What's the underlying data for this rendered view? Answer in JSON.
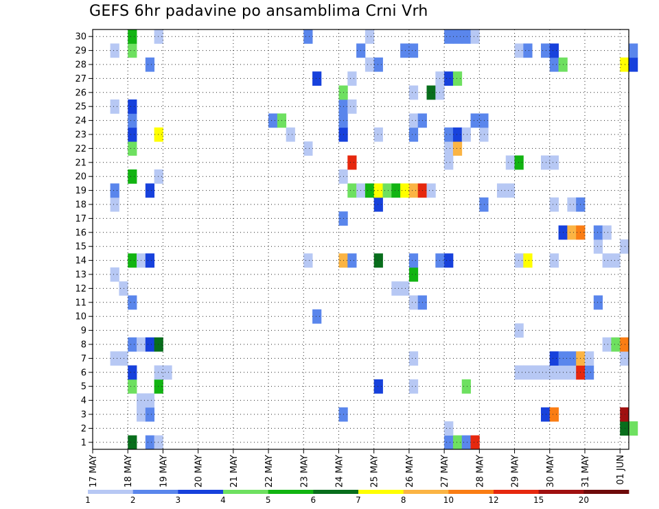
{
  "chart_data": {
    "type": "heatmap",
    "title": "GEFS 6hr padavine po ansamblima Crni Vrh",
    "y_ticks": [
      1,
      2,
      3,
      4,
      5,
      6,
      7,
      8,
      9,
      10,
      11,
      12,
      13,
      14,
      15,
      16,
      17,
      18,
      19,
      20,
      21,
      22,
      23,
      24,
      25,
      26,
      27,
      28,
      29,
      30
    ],
    "x_ticks": [
      "17 MAY",
      "18 MAY",
      "19 MAY",
      "20 MAY",
      "21 MAY",
      "22 MAY",
      "23 MAY",
      "24 MAY",
      "25 MAY",
      "26 MAY",
      "27 MAY",
      "28 MAY",
      "29 MAY",
      "30 MAY",
      "31 MAY",
      "01 JUN"
    ],
    "x_range": [
      "17 MAY 00Z",
      "01 JUN 06Z"
    ],
    "time_step_hours": 6,
    "grid": true,
    "colorbar": {
      "labels": [
        "1",
        "2",
        "3",
        "4",
        "5",
        "6",
        "7",
        "8",
        "10",
        "12",
        "15",
        "20"
      ],
      "colors": [
        "#b7c8f4",
        "#5a86ec",
        "#1741dc",
        "#6ee060",
        "#12b412",
        "#086e1c",
        "#ffff00",
        "#fbb444",
        "#fa7d14",
        "#e6280e",
        "#a01010",
        "#6e0a0a"
      ]
    },
    "cells": [
      {
        "m": 0,
        "t": "18 MAY 00Z",
        "c": 5
      },
      {
        "m": 0,
        "t": "18 MAY 12Z",
        "c": 1
      },
      {
        "m": 0,
        "t": "18 MAY 18Z",
        "c": 0
      },
      {
        "m": 0,
        "t": "27 MAY 00Z",
        "c": 1
      },
      {
        "m": 0,
        "t": "27 MAY 06Z",
        "c": 3
      },
      {
        "m": 0,
        "t": "27 MAY 12Z",
        "c": 1
      },
      {
        "m": 0,
        "t": "27 MAY 18Z",
        "c": 9
      },
      {
        "m": 1,
        "t": "27 MAY 00Z",
        "c": 0
      },
      {
        "m": 1,
        "t": "01 JUN 00Z",
        "c": 5
      },
      {
        "m": 1,
        "t": "01 JUN 06Z",
        "c": 3
      },
      {
        "m": 2,
        "t": "18 MAY 06Z",
        "c": 0
      },
      {
        "m": 2,
        "t": "18 MAY 12Z",
        "c": 1
      },
      {
        "m": 2,
        "t": "24 MAY 00Z",
        "c": 1
      },
      {
        "m": 2,
        "t": "29 MAY 18Z",
        "c": 2
      },
      {
        "m": 2,
        "t": "30 MAY 00Z",
        "c": 8
      },
      {
        "m": 2,
        "t": "01 JUN 00Z",
        "c": 10
      },
      {
        "m": 3,
        "t": "18 MAY 06Z",
        "c": 0
      },
      {
        "m": 3,
        "t": "18 MAY 12Z",
        "c": 0
      },
      {
        "m": 4,
        "t": "18 MAY 00Z",
        "c": 3
      },
      {
        "m": 4,
        "t": "18 MAY 18Z",
        "c": 4
      },
      {
        "m": 4,
        "t": "25 MAY 00Z",
        "c": 2
      },
      {
        "m": 4,
        "t": "26 MAY 00Z",
        "c": 0
      },
      {
        "m": 4,
        "t": "27 MAY 12Z",
        "c": 3
      },
      {
        "m": 5,
        "t": "18 MAY 00Z",
        "c": 2
      },
      {
        "m": 5,
        "t": "18 MAY 18Z",
        "c": 0
      },
      {
        "m": 5,
        "t": "19 MAY 00Z",
        "c": 0
      },
      {
        "m": 5,
        "t": "29 MAY 00Z",
        "c": 0
      },
      {
        "m": 5,
        "t": "29 MAY 06Z",
        "c": 0
      },
      {
        "m": 5,
        "t": "29 MAY 12Z",
        "c": 0
      },
      {
        "m": 5,
        "t": "29 MAY 18Z",
        "c": 0
      },
      {
        "m": 5,
        "t": "30 MAY 00Z",
        "c": 0
      },
      {
        "m": 5,
        "t": "30 MAY 06Z",
        "c": 0
      },
      {
        "m": 5,
        "t": "30 MAY 12Z",
        "c": 0
      },
      {
        "m": 5,
        "t": "30 MAY 18Z",
        "c": 9
      },
      {
        "m": 5,
        "t": "31 MAY 00Z",
        "c": 1
      },
      {
        "m": 6,
        "t": "17 MAY 12Z",
        "c": 0
      },
      {
        "m": 6,
        "t": "17 MAY 18Z",
        "c": 0
      },
      {
        "m": 6,
        "t": "26 MAY 00Z",
        "c": 0
      },
      {
        "m": 6,
        "t": "30 MAY 00Z",
        "c": 2
      },
      {
        "m": 6,
        "t": "30 MAY 06Z",
        "c": 1
      },
      {
        "m": 6,
        "t": "30 MAY 12Z",
        "c": 1
      },
      {
        "m": 6,
        "t": "30 MAY 18Z",
        "c": 7
      },
      {
        "m": 6,
        "t": "31 MAY 00Z",
        "c": 0
      },
      {
        "m": 6,
        "t": "01 JUN 00Z",
        "c": 0
      },
      {
        "m": 7,
        "t": "18 MAY 00Z",
        "c": 1
      },
      {
        "m": 7,
        "t": "18 MAY 06Z",
        "c": 0
      },
      {
        "m": 7,
        "t": "18 MAY 12Z",
        "c": 2
      },
      {
        "m": 7,
        "t": "18 MAY 18Z",
        "c": 5
      },
      {
        "m": 7,
        "t": "31 MAY 12Z",
        "c": 0
      },
      {
        "m": 7,
        "t": "31 MAY 18Z",
        "c": 3
      },
      {
        "m": 7,
        "t": "01 JUN 00Z",
        "c": 8
      },
      {
        "m": 8,
        "t": "29 MAY 00Z",
        "c": 0
      },
      {
        "m": 9,
        "t": "23 MAY 06Z",
        "c": 1
      },
      {
        "m": 10,
        "t": "18 MAY 00Z",
        "c": 1
      },
      {
        "m": 10,
        "t": "26 MAY 00Z",
        "c": 0
      },
      {
        "m": 10,
        "t": "26 MAY 06Z",
        "c": 1
      },
      {
        "m": 10,
        "t": "31 MAY 06Z",
        "c": 1
      },
      {
        "m": 11,
        "t": "17 MAY 18Z",
        "c": 0
      },
      {
        "m": 11,
        "t": "25 MAY 12Z",
        "c": 0
      },
      {
        "m": 11,
        "t": "25 MAY 18Z",
        "c": 0
      },
      {
        "m": 12,
        "t": "17 MAY 12Z",
        "c": 0
      },
      {
        "m": 12,
        "t": "26 MAY 00Z",
        "c": 4
      },
      {
        "m": 13,
        "t": "18 MAY 00Z",
        "c": 4
      },
      {
        "m": 13,
        "t": "18 MAY 06Z",
        "c": 0
      },
      {
        "m": 13,
        "t": "18 MAY 12Z",
        "c": 2
      },
      {
        "m": 13,
        "t": "23 MAY 00Z",
        "c": 0
      },
      {
        "m": 13,
        "t": "24 MAY 00Z",
        "c": 7
      },
      {
        "m": 13,
        "t": "24 MAY 06Z",
        "c": 1
      },
      {
        "m": 13,
        "t": "25 MAY 00Z",
        "c": 5
      },
      {
        "m": 13,
        "t": "26 MAY 00Z",
        "c": 1
      },
      {
        "m": 13,
        "t": "26 MAY 18Z",
        "c": 1
      },
      {
        "m": 13,
        "t": "27 MAY 00Z",
        "c": 2
      },
      {
        "m": 13,
        "t": "29 MAY 00Z",
        "c": 0
      },
      {
        "m": 13,
        "t": "29 MAY 06Z",
        "c": 6
      },
      {
        "m": 13,
        "t": "30 MAY 00Z",
        "c": 0
      },
      {
        "m": 13,
        "t": "31 MAY 12Z",
        "c": 0
      },
      {
        "m": 13,
        "t": "31 MAY 18Z",
        "c": 0
      },
      {
        "m": 14,
        "t": "31 MAY 06Z",
        "c": 0
      },
      {
        "m": 14,
        "t": "01 JUN 00Z",
        "c": 0
      },
      {
        "m": 15,
        "t": "30 MAY 06Z",
        "c": 2
      },
      {
        "m": 15,
        "t": "30 MAY 12Z",
        "c": 7
      },
      {
        "m": 15,
        "t": "30 MAY 18Z",
        "c": 8
      },
      {
        "m": 15,
        "t": "31 MAY 06Z",
        "c": 1
      },
      {
        "m": 15,
        "t": "31 MAY 12Z",
        "c": 0
      },
      {
        "m": 16,
        "t": "24 MAY 00Z",
        "c": 1
      },
      {
        "m": 17,
        "t": "17 MAY 12Z",
        "c": 0
      },
      {
        "m": 17,
        "t": "25 MAY 00Z",
        "c": 2
      },
      {
        "m": 17,
        "t": "28 MAY 00Z",
        "c": 1
      },
      {
        "m": 17,
        "t": "30 MAY 00Z",
        "c": 0
      },
      {
        "m": 17,
        "t": "30 MAY 12Z",
        "c": 0
      },
      {
        "m": 17,
        "t": "30 MAY 18Z",
        "c": 1
      },
      {
        "m": 18,
        "t": "17 MAY 12Z",
        "c": 1
      },
      {
        "m": 18,
        "t": "18 MAY 12Z",
        "c": 2
      },
      {
        "m": 18,
        "t": "24 MAY 06Z",
        "c": 3
      },
      {
        "m": 18,
        "t": "24 MAY 12Z",
        "c": 0
      },
      {
        "m": 18,
        "t": "24 MAY 18Z",
        "c": 4
      },
      {
        "m": 18,
        "t": "25 MAY 00Z",
        "c": 6
      },
      {
        "m": 18,
        "t": "25 MAY 06Z",
        "c": 3
      },
      {
        "m": 18,
        "t": "25 MAY 12Z",
        "c": 4
      },
      {
        "m": 18,
        "t": "25 MAY 18Z",
        "c": 6
      },
      {
        "m": 18,
        "t": "26 MAY 00Z",
        "c": 7
      },
      {
        "m": 18,
        "t": "26 MAY 06Z",
        "c": 9
      },
      {
        "m": 18,
        "t": "26 MAY 12Z",
        "c": 0
      },
      {
        "m": 18,
        "t": "28 MAY 12Z",
        "c": 0
      },
      {
        "m": 18,
        "t": "28 MAY 18Z",
        "c": 0
      },
      {
        "m": 19,
        "t": "18 MAY 00Z",
        "c": 4
      },
      {
        "m": 19,
        "t": "18 MAY 18Z",
        "c": 0
      },
      {
        "m": 19,
        "t": "24 MAY 00Z",
        "c": 0
      },
      {
        "m": 20,
        "t": "24 MAY 06Z",
        "c": 9
      },
      {
        "m": 20,
        "t": "27 MAY 00Z",
        "c": 0
      },
      {
        "m": 20,
        "t": "29 MAY 18Z",
        "c": 0
      },
      {
        "m": 20,
        "t": "28 MAY 18Z",
        "c": 0
      },
      {
        "m": 20,
        "t": "29 MAY 00Z",
        "c": 4
      },
      {
        "m": 20,
        "t": "30 MAY 00Z",
        "c": 0
      },
      {
        "m": 21,
        "t": "18 MAY 00Z",
        "c": 3
      },
      {
        "m": 21,
        "t": "23 MAY 00Z",
        "c": 0
      },
      {
        "m": 21,
        "t": "27 MAY 00Z",
        "c": 0
      },
      {
        "m": 21,
        "t": "27 MAY 06Z",
        "c": 7
      },
      {
        "m": 22,
        "t": "18 MAY 00Z",
        "c": 2
      },
      {
        "m": 22,
        "t": "18 MAY 18Z",
        "c": 6
      },
      {
        "m": 22,
        "t": "22 MAY 12Z",
        "c": 0
      },
      {
        "m": 22,
        "t": "24 MAY 00Z",
        "c": 2
      },
      {
        "m": 22,
        "t": "25 MAY 00Z",
        "c": 0
      },
      {
        "m": 22,
        "t": "26 MAY 00Z",
        "c": 1
      },
      {
        "m": 22,
        "t": "27 MAY 00Z",
        "c": 1
      },
      {
        "m": 22,
        "t": "27 MAY 06Z",
        "c": 2
      },
      {
        "m": 22,
        "t": "27 MAY 12Z",
        "c": 0
      },
      {
        "m": 22,
        "t": "28 MAY 00Z",
        "c": 0
      },
      {
        "m": 23,
        "t": "18 MAY 00Z",
        "c": 1
      },
      {
        "m": 23,
        "t": "22 MAY 00Z",
        "c": 1
      },
      {
        "m": 23,
        "t": "22 MAY 06Z",
        "c": 3
      },
      {
        "m": 23,
        "t": "24 MAY 00Z",
        "c": 1
      },
      {
        "m": 23,
        "t": "26 MAY 00Z",
        "c": 0
      },
      {
        "m": 23,
        "t": "26 MAY 06Z",
        "c": 1
      },
      {
        "m": 23,
        "t": "27 MAY 18Z",
        "c": 1
      },
      {
        "m": 23,
        "t": "28 MAY 00Z",
        "c": 1
      },
      {
        "m": 24,
        "t": "17 MAY 12Z",
        "c": 0
      },
      {
        "m": 24,
        "t": "18 MAY 00Z",
        "c": 2
      },
      {
        "m": 24,
        "t": "24 MAY 00Z",
        "c": 1
      },
      {
        "m": 24,
        "t": "24 MAY 06Z",
        "c": 0
      },
      {
        "m": 25,
        "t": "24 MAY 00Z",
        "c": 3
      },
      {
        "m": 25,
        "t": "26 MAY 00Z",
        "c": 0
      },
      {
        "m": 25,
        "t": "26 MAY 12Z",
        "c": 5
      },
      {
        "m": 25,
        "t": "26 MAY 18Z",
        "c": 0
      },
      {
        "m": 26,
        "t": "23 MAY 06Z",
        "c": 2
      },
      {
        "m": 26,
        "t": "24 MAY 06Z",
        "c": 0
      },
      {
        "m": 26,
        "t": "26 MAY 18Z",
        "c": 0
      },
      {
        "m": 26,
        "t": "27 MAY 00Z",
        "c": 2
      },
      {
        "m": 26,
        "t": "27 MAY 06Z",
        "c": 3
      },
      {
        "m": 27,
        "t": "18 MAY 12Z",
        "c": 1
      },
      {
        "m": 27,
        "t": "24 MAY 18Z",
        "c": 0
      },
      {
        "m": 27,
        "t": "25 MAY 00Z",
        "c": 1
      },
      {
        "m": 27,
        "t": "30 MAY 00Z",
        "c": 1
      },
      {
        "m": 27,
        "t": "30 MAY 06Z",
        "c": 3
      },
      {
        "m": 27,
        "t": "01 JUN 00Z",
        "c": 6
      },
      {
        "m": 27,
        "t": "01 JUN 06Z",
        "c": 2
      },
      {
        "m": 28,
        "t": "17 MAY 12Z",
        "c": 0
      },
      {
        "m": 28,
        "t": "18 MAY 00Z",
        "c": 3
      },
      {
        "m": 28,
        "t": "24 MAY 12Z",
        "c": 1
      },
      {
        "m": 28,
        "t": "25 MAY 18Z",
        "c": 1
      },
      {
        "m": 28,
        "t": "26 MAY 00Z",
        "c": 1
      },
      {
        "m": 28,
        "t": "29 MAY 00Z",
        "c": 0
      },
      {
        "m": 28,
        "t": "29 MAY 06Z",
        "c": 1
      },
      {
        "m": 28,
        "t": "29 MAY 18Z",
        "c": 1
      },
      {
        "m": 28,
        "t": "30 MAY 00Z",
        "c": 2
      },
      {
        "m": 28,
        "t": "01 JUN 06Z",
        "c": 1
      },
      {
        "m": 29,
        "t": "18 MAY 00Z",
        "c": 4
      },
      {
        "m": 29,
        "t": "18 MAY 18Z",
        "c": 0
      },
      {
        "m": 29,
        "t": "23 MAY 00Z",
        "c": 1
      },
      {
        "m": 29,
        "t": "24 MAY 18Z",
        "c": 0
      },
      {
        "m": 29,
        "t": "27 MAY 00Z",
        "c": 1
      },
      {
        "m": 29,
        "t": "27 MAY 06Z",
        "c": 1
      },
      {
        "m": 29,
        "t": "27 MAY 12Z",
        "c": 1
      },
      {
        "m": 29,
        "t": "27 MAY 18Z",
        "c": 0
      }
    ]
  }
}
